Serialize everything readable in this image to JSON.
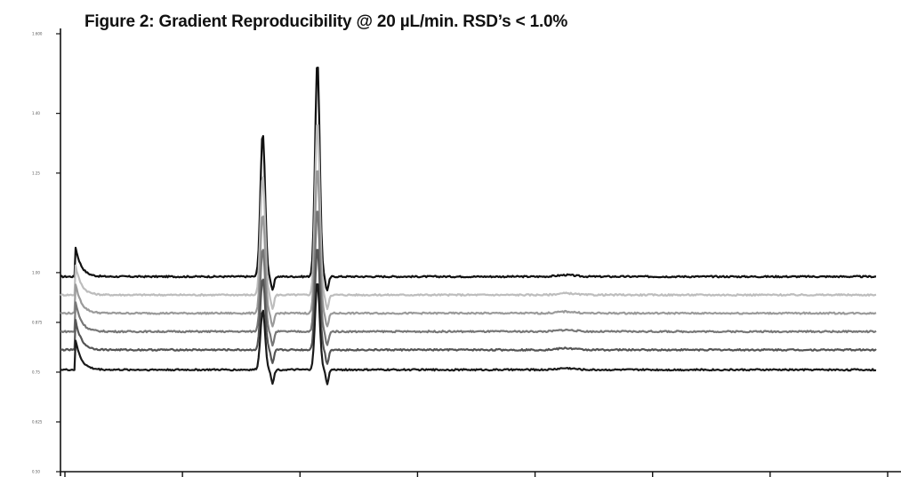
{
  "chart_data": {
    "type": "line",
    "title": "Figure 2:  Gradient Reproducibility @ 20 µL/min. RSD’s < 1.0%",
    "xlabel": "",
    "ylabel": "",
    "x_range": [
      0,
      1
    ],
    "y_range": [
      0.5,
      1.6
    ],
    "y_ticks": [
      0.5,
      0.625,
      0.75,
      0.875,
      1.0,
      1.25,
      1.4,
      1.6
    ],
    "y_tick_labels": [
      "0.50",
      "0.625",
      "0.75",
      "0.875",
      "1.00",
      "1.25",
      "1.40",
      "1.600"
    ],
    "x_tick_count": 8,
    "grid": false,
    "legend": false,
    "series": [
      {
        "color": "#111111",
        "baseline": 0.99,
        "peaks": [
          {
            "x": 0.248,
            "height": 0.36,
            "width": 0.004
          },
          {
            "x": 0.315,
            "height": 0.54,
            "width": 0.004
          }
        ]
      },
      {
        "color": "#bdbdbd",
        "baseline": 0.944,
        "peaks": [
          {
            "x": 0.248,
            "height": 0.3,
            "width": 0.004
          },
          {
            "x": 0.315,
            "height": 0.44,
            "width": 0.004
          }
        ]
      },
      {
        "color": "#9a9a9a",
        "baseline": 0.898,
        "peaks": [
          {
            "x": 0.248,
            "height": 0.25,
            "width": 0.004
          },
          {
            "x": 0.315,
            "height": 0.37,
            "width": 0.004
          }
        ]
      },
      {
        "color": "#777777",
        "baseline": 0.852,
        "peaks": [
          {
            "x": 0.248,
            "height": 0.21,
            "width": 0.004
          },
          {
            "x": 0.315,
            "height": 0.31,
            "width": 0.004
          }
        ]
      },
      {
        "color": "#555555",
        "baseline": 0.806,
        "peaks": [
          {
            "x": 0.248,
            "height": 0.18,
            "width": 0.004
          },
          {
            "x": 0.315,
            "height": 0.26,
            "width": 0.004
          }
        ]
      },
      {
        "color": "#1a1a1a",
        "baseline": 0.756,
        "peaks": [
          {
            "x": 0.248,
            "height": 0.15,
            "width": 0.004
          },
          {
            "x": 0.315,
            "height": 0.22,
            "width": 0.004
          }
        ]
      }
    ]
  }
}
